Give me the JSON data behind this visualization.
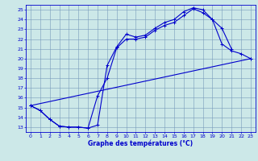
{
  "title": "Graphe des températures (°C)",
  "bg_color": "#cce8e8",
  "grid_color": "#7799bb",
  "line_color": "#0000cc",
  "xlim": [
    -0.5,
    23.5
  ],
  "ylim": [
    12.5,
    25.5
  ],
  "xticks": [
    0,
    1,
    2,
    3,
    4,
    5,
    6,
    7,
    8,
    9,
    10,
    11,
    12,
    13,
    14,
    15,
    16,
    17,
    18,
    19,
    20,
    21,
    22,
    23
  ],
  "yticks": [
    13,
    14,
    15,
    16,
    17,
    18,
    19,
    20,
    21,
    22,
    23,
    24,
    25
  ],
  "line1_x": [
    0,
    1,
    2,
    3,
    4,
    5,
    6,
    7,
    8,
    9,
    10,
    11,
    12,
    13,
    14,
    15,
    16,
    17,
    18,
    19,
    20,
    21
  ],
  "line1_y": [
    15.2,
    14.7,
    13.8,
    13.1,
    13.0,
    13.0,
    12.9,
    13.2,
    19.3,
    21.2,
    22.5,
    22.2,
    22.4,
    23.1,
    23.7,
    24.0,
    24.8,
    25.2,
    25.0,
    24.0,
    23.1,
    21.0
  ],
  "line2_x": [
    0,
    1,
    2,
    3,
    4,
    5,
    6,
    7,
    8,
    9,
    10,
    11,
    12,
    13,
    14,
    15,
    16,
    17,
    18,
    19,
    20,
    21,
    22,
    23
  ],
  "line2_y": [
    15.2,
    14.7,
    13.8,
    13.1,
    13.0,
    13.0,
    12.9,
    16.2,
    18.0,
    21.1,
    22.0,
    22.0,
    22.2,
    22.9,
    23.4,
    23.7,
    24.4,
    25.1,
    24.7,
    24.0,
    21.5,
    20.8,
    20.5,
    20.0
  ],
  "line3_x": [
    0,
    23
  ],
  "line3_y": [
    15.2,
    20.0
  ]
}
